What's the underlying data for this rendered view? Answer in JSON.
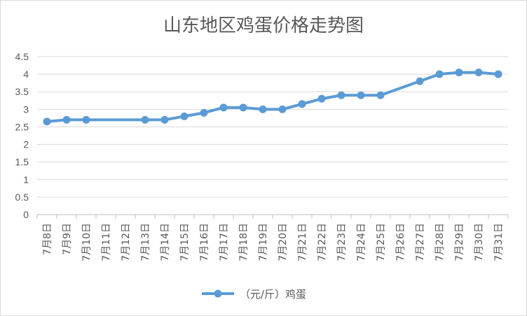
{
  "chart_data": {
    "type": "line",
    "title": "山东地区鸡蛋价格走势图",
    "categories": [
      "7月8日",
      "7月9日",
      "7月10日",
      "7月11日",
      "7月12日",
      "7月13日",
      "7月14日",
      "7月15日",
      "7月16日",
      "7月17日",
      "7月18日",
      "7月19日",
      "7月20日",
      "7月21日",
      "7月22日",
      "7月23日",
      "7月24日",
      "7月25日",
      "7月26日",
      "7月27日",
      "7月28日",
      "7月29日",
      "7月30日",
      "7月31日"
    ],
    "series": [
      {
        "name": "（元/斤）鸡蛋",
        "color": "#5b9bd5",
        "values": [
          2.65,
          2.7,
          2.7,
          null,
          null,
          2.7,
          2.7,
          2.8,
          2.9,
          3.05,
          3.05,
          3.0,
          3.0,
          3.15,
          3.3,
          3.4,
          3.4,
          3.4,
          null,
          3.8,
          4.0,
          4.05,
          4.05,
          4.0
        ]
      }
    ],
    "yticks": [
      "0",
      "0.5",
      "1",
      "1.5",
      "2",
      "2.5",
      "3",
      "3.5",
      "4",
      "4.5"
    ],
    "ylim": [
      0,
      4.5
    ],
    "grid": true,
    "legend_position": "bottom"
  }
}
